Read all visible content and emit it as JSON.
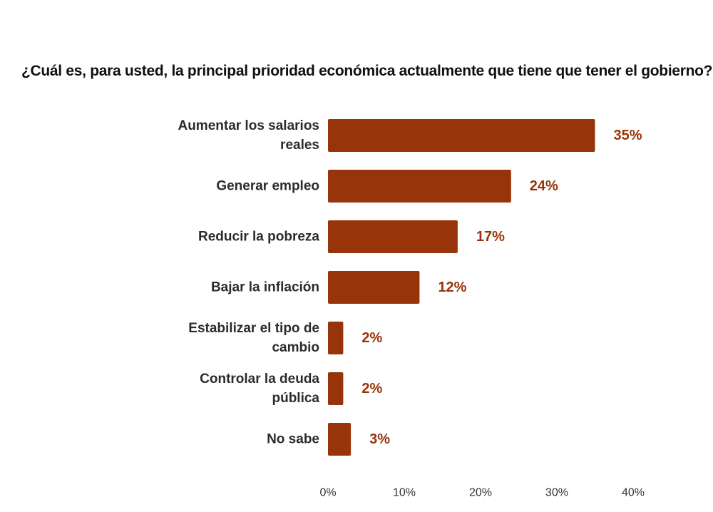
{
  "chart_data": {
    "type": "bar",
    "orientation": "horizontal",
    "title": "¿Cuál es, para usted, la principal prioridad económica actualmente que tiene que tener el gobierno?",
    "categories": [
      "Aumentar los salarios reales",
      "Generar empleo",
      "Reducir la pobreza",
      "Bajar la inflación",
      "Estabilizar el tipo de cambio",
      "Controlar la deuda pública",
      "No sabe"
    ],
    "category_lines": [
      [
        "Aumentar los salarios",
        "reales"
      ],
      [
        "Generar empleo"
      ],
      [
        "Reducir la pobreza"
      ],
      [
        "Bajar la inflación"
      ],
      [
        "Estabilizar el tipo de",
        "cambio"
      ],
      [
        "Controlar la deuda",
        "pública"
      ],
      [
        "No sabe"
      ]
    ],
    "values": [
      35,
      24,
      17,
      12,
      2,
      2,
      3
    ],
    "value_labels": [
      "35%",
      "24%",
      "17%",
      "12%",
      "2%",
      "2%",
      "3%"
    ],
    "xlim": [
      0,
      40
    ],
    "xticks": [
      0,
      10,
      20,
      30,
      40
    ],
    "xtick_labels": [
      "0%",
      "10%",
      "20%",
      "30%",
      "40%"
    ],
    "xlabel": "",
    "ylabel": "",
    "grid": false,
    "legend": "none",
    "bar_color": "#973409",
    "value_label_color": "#973409"
  }
}
